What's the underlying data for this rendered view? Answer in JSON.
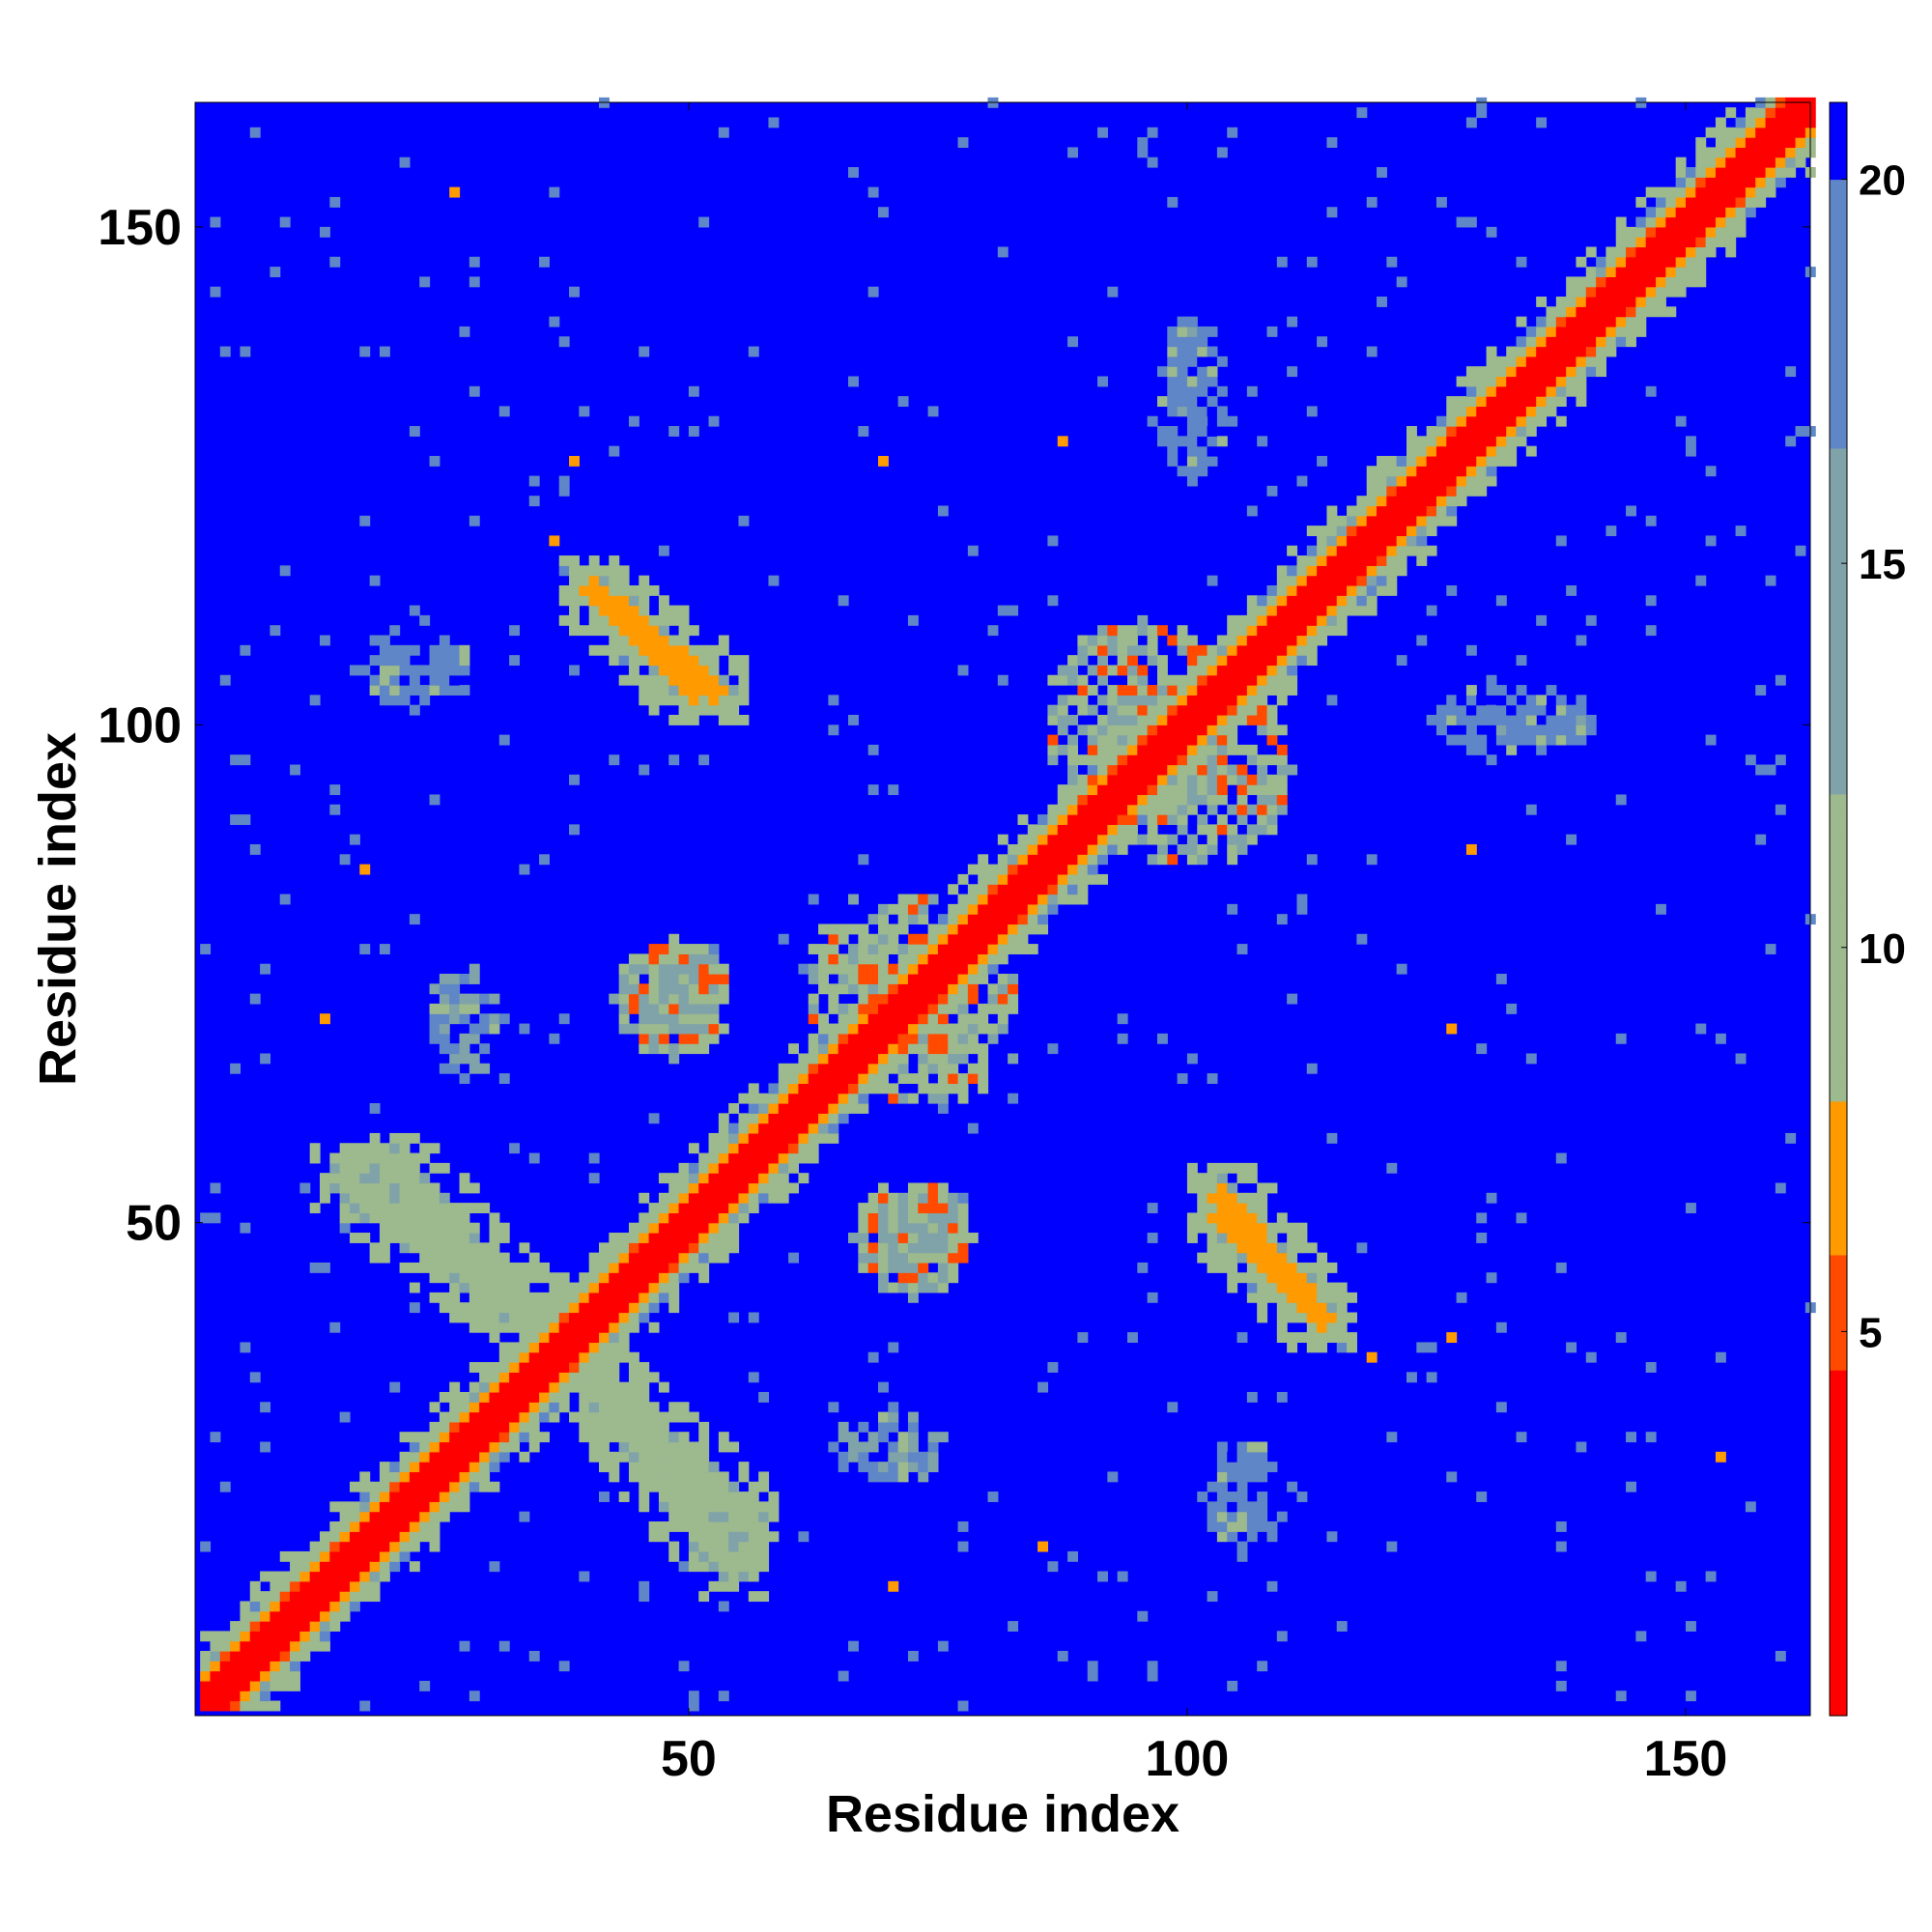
{
  "chart_data": {
    "type": "heatmap",
    "title": "",
    "xlabel": "Residue index",
    "ylabel": "Residue index",
    "n_residues": 162,
    "xlim": [
      1,
      162
    ],
    "ylim": [
      1,
      162
    ],
    "x_ticks": [
      50,
      100,
      150
    ],
    "y_ticks": [
      50,
      100,
      150
    ],
    "colorbar": {
      "range": [
        0,
        21
      ],
      "ticks": [
        5,
        10,
        15,
        20
      ],
      "colors": {
        "contact": "#ff0000",
        "close": "#ff8a00",
        "mid": "#9db98e",
        "far": "#5f86c6",
        "background": "#0000ff"
      },
      "levels": [
        {
          "max": 4.5,
          "color": "#ff0000"
        },
        {
          "max": 6.0,
          "color": "#ff4a00"
        },
        {
          "max": 8.0,
          "color": "#ff9a00"
        },
        {
          "max": 12.0,
          "color": "#9db98e"
        },
        {
          "max": 16.5,
          "color": "#7fa3a8"
        },
        {
          "max": 20.0,
          "color": "#5f86c6"
        },
        {
          "max": 21.0,
          "color": "#0000ff"
        }
      ]
    },
    "features": {
      "diagonal": {
        "description": "contact band along i=j",
        "color_values": [
          2,
          4,
          7,
          10
        ]
      },
      "antiparallel_sheets": [
        {
          "x": [
            40,
            52
          ],
          "y": [
            113,
            103
          ],
          "min_value": 7
        },
        {
          "x": [
            103,
            113
          ],
          "y": [
            50,
            40
          ],
          "min_value": 7
        },
        {
          "x": [
            15,
            40
          ],
          "y": [
            54,
            35
          ],
          "min_value": 10
        },
        {
          "x": [
            35,
            55
          ],
          "y": [
            38,
            20
          ],
          "min_value": 10
        }
      ],
      "hubs": [
        {
          "x": 95,
          "y": 100,
          "rx": 10,
          "ry": 10,
          "value": 10
        },
        {
          "x": 48,
          "y": 72,
          "rx": 6,
          "ry": 6,
          "value": 10
        },
        {
          "x": 72,
          "y": 48,
          "rx": 6,
          "ry": 6,
          "value": 10
        },
        {
          "x": 70,
          "y": 74,
          "rx": 9,
          "ry": 9,
          "value": 9
        },
        {
          "x": 70,
          "y": 27,
          "rx": 6,
          "ry": 4,
          "value": 14
        },
        {
          "x": 105,
          "y": 22,
          "rx": 4,
          "ry": 6,
          "value": 16
        },
        {
          "x": 100,
          "y": 130,
          "rx": 4,
          "ry": 6,
          "value": 16
        },
        {
          "x": 135,
          "y": 100,
          "rx": 6,
          "ry": 3,
          "value": 16
        }
      ]
    }
  }
}
